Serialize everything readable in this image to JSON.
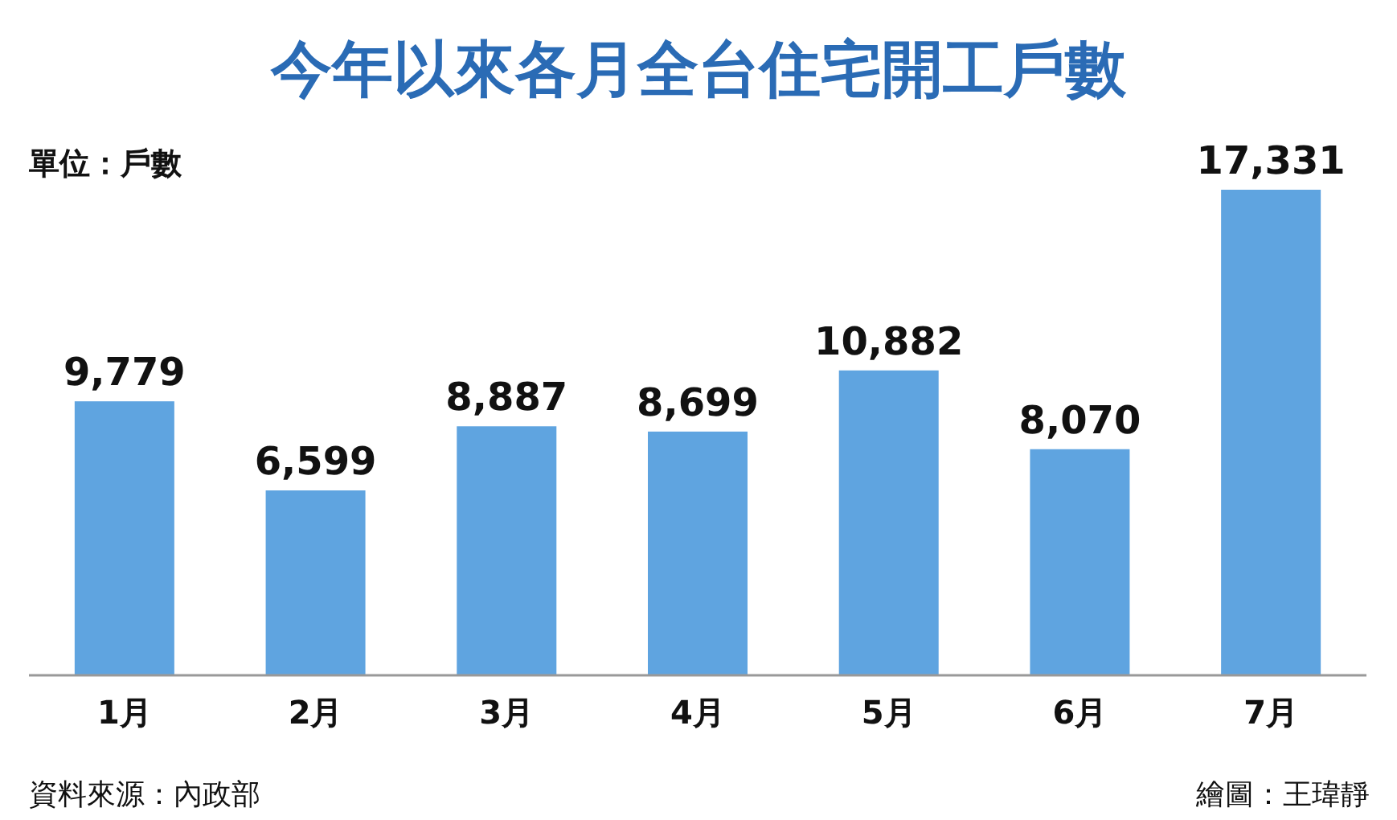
{
  "chart_data": {
    "type": "bar",
    "title": "今年以來各月全台住宅開工戶數",
    "ylabel": "單位：戶數",
    "categories": [
      "1月",
      "2月",
      "3月",
      "4月",
      "5月",
      "6月",
      "7月"
    ],
    "values": [
      9779,
      6599,
      8887,
      8699,
      10882,
      8070,
      17331
    ],
    "color": "#5fa4e0",
    "value_labels": [
      "9,779",
      "6,599",
      "8,887",
      "8,699",
      "10,882",
      "8,070",
      "17,331"
    ],
    "annotations": [
      "資料來源：內政部",
      "繪圖：王瑋靜"
    ]
  }
}
